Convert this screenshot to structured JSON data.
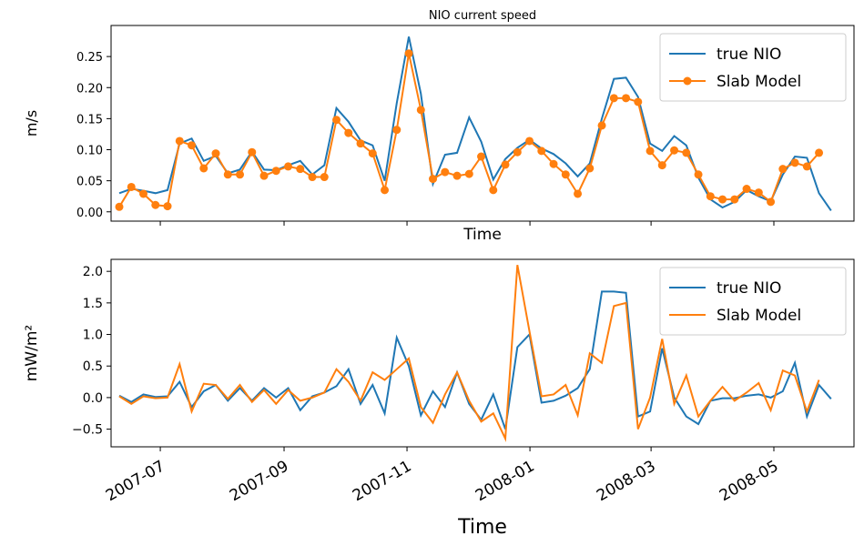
{
  "chart_data": [
    {
      "type": "line",
      "title": "NIO current speed",
      "xlabel": "Time",
      "ylabel": "m/s",
      "xlim": [
        -0.68,
        60.9
      ],
      "xticks": [
        3.4,
        13.66,
        23.85,
        34.04,
        44.08,
        54.26
      ],
      "xtick_labels": false,
      "ylim": [
        -0.015,
        0.3
      ],
      "yticks": [
        {
          "value": 0,
          "label": "0.00"
        },
        {
          "value": 0.05,
          "label": "0.05"
        },
        {
          "value": 0.1,
          "label": "0.10"
        },
        {
          "value": 0.15,
          "label": "0.15"
        },
        {
          "value": 0.2,
          "label": "0.20"
        },
        {
          "value": 0.25,
          "label": "0.25"
        }
      ],
      "legend": "upper right",
      "series": [
        {
          "name": "true NIO",
          "color": "#1f77b4",
          "values": [
            0.03,
            0.037,
            0.034,
            0.03,
            0.035,
            0.11,
            0.118,
            0.082,
            0.09,
            0.062,
            0.068,
            0.097,
            0.068,
            0.067,
            0.075,
            0.082,
            0.06,
            0.075,
            0.167,
            0.145,
            0.115,
            0.107,
            0.05,
            0.175,
            0.282,
            0.19,
            0.045,
            0.092,
            0.095,
            0.152,
            0.113,
            0.052,
            0.085,
            0.103,
            0.116,
            0.102,
            0.093,
            0.078,
            0.057,
            0.078,
            0.15,
            0.214,
            0.216,
            0.185,
            0.11,
            0.098,
            0.122,
            0.107,
            0.055,
            0.02,
            0.007,
            0.016,
            0.035,
            0.025,
            0.017,
            0.06,
            0.089,
            0.087,
            0.03,
            0.002
          ]
        },
        {
          "name": "Slab Model",
          "color": "#ff7f0e",
          "marker": "o",
          "values": [
            0.008,
            0.04,
            0.029,
            0.011,
            0.009,
            0.114,
            0.107,
            0.07,
            0.094,
            0.06,
            0.06,
            0.096,
            0.058,
            0.066,
            0.073,
            0.069,
            0.056,
            0.056,
            0.148,
            0.127,
            0.11,
            0.094,
            0.035,
            0.132,
            0.255,
            0.164,
            0.053,
            0.064,
            0.058,
            0.061,
            0.089,
            0.035,
            0.076,
            0.096,
            0.114,
            0.098,
            0.077,
            0.06,
            0.029,
            0.07,
            0.139,
            0.183,
            0.183,
            0.177,
            0.098,
            0.075,
            0.099,
            0.095,
            0.06,
            0.025,
            0.02,
            0.02,
            0.037,
            0.031,
            0.016,
            0.069,
            0.079,
            0.073,
            0.095,
            null
          ]
        }
      ]
    },
    {
      "type": "line",
      "xlabel": "Time",
      "ylabel": "mW/m²",
      "xlim": [
        -0.68,
        60.9
      ],
      "xticks": [
        {
          "value": 3.4,
          "label": "2007-07"
        },
        {
          "value": 13.66,
          "label": "2007-09"
        },
        {
          "value": 23.85,
          "label": "2007-11"
        },
        {
          "value": 34.04,
          "label": "2008-01"
        },
        {
          "value": 44.08,
          "label": "2008-03"
        },
        {
          "value": 54.26,
          "label": "2008-05"
        }
      ],
      "xtick_labels": true,
      "ylim": [
        -0.78,
        2.19
      ],
      "yticks": [
        {
          "value": -0.5,
          "label": "−0.5"
        },
        {
          "value": 0,
          "label": "0.0"
        },
        0.5,
        {
          "value": 1,
          "label": "1.0"
        },
        1.5,
        {
          "value": 2,
          "label": "2.0"
        }
      ],
      "legend": "upper right",
      "series": [
        {
          "name": "true NIO",
          "color": "#1f77b4",
          "values": [
            0.03,
            -0.07,
            0.05,
            0.01,
            0.02,
            0.25,
            -0.15,
            0.1,
            0.2,
            -0.05,
            0.15,
            -0.05,
            0.15,
            0.0,
            0.15,
            -0.2,
            0.02,
            0.08,
            0.18,
            0.45,
            -0.1,
            0.2,
            -0.25,
            0.95,
            0.5,
            -0.28,
            0.1,
            -0.15,
            0.4,
            -0.1,
            -0.35,
            0.05,
            -0.5,
            0.8,
            1.0,
            -0.08,
            -0.05,
            0.03,
            0.15,
            0.45,
            1.68,
            1.68,
            1.66,
            -0.3,
            -0.22,
            0.78,
            0.0,
            -0.3,
            -0.42,
            -0.05,
            -0.01,
            -0.01,
            0.03,
            0.05,
            0.0,
            0.1,
            0.55,
            -0.3,
            0.2,
            -0.02
          ]
        },
        {
          "name": "Slab Model",
          "color": "#ff7f0e",
          "values": [
            0.02,
            -0.1,
            0.02,
            -0.01,
            0.0,
            0.53,
            -0.22,
            0.22,
            0.2,
            -0.02,
            0.2,
            -0.07,
            0.12,
            -0.1,
            0.12,
            -0.05,
            0.0,
            0.08,
            0.45,
            0.25,
            -0.05,
            0.4,
            0.28,
            0.45,
            0.62,
            -0.15,
            -0.4,
            0.05,
            0.4,
            -0.05,
            -0.38,
            -0.25,
            -0.65,
            2.1,
            1.05,
            0.02,
            0.05,
            0.2,
            -0.28,
            0.7,
            0.55,
            1.45,
            1.5,
            -0.5,
            0.0,
            0.93,
            -0.1,
            0.35,
            -0.3,
            -0.05,
            0.17,
            -0.05,
            0.08,
            0.23,
            -0.2,
            0.43,
            0.35,
            -0.22,
            0.28,
            null
          ]
        }
      ]
    }
  ]
}
